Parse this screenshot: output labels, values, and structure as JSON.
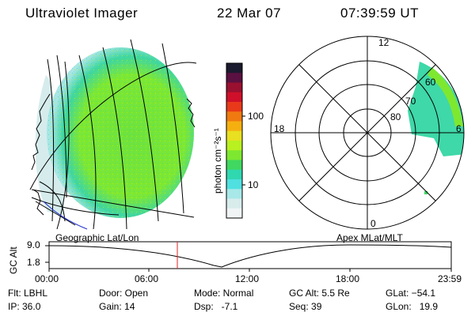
{
  "header": {
    "instrument": "Ultraviolet Imager",
    "date": "22 Mar 07",
    "time": "07:39:59 UT"
  },
  "colorbar": {
    "unit_label": "photon cm⁻²s⁻¹",
    "ticks": [
      "100",
      "10"
    ],
    "colors": [
      "#1a1a2e",
      "#5a1040",
      "#9a1030",
      "#d0102a",
      "#e83a1a",
      "#f07a10",
      "#f5b010",
      "#e8e020",
      "#b8f020",
      "#7ee830",
      "#40d860",
      "#30d8b0",
      "#50e0e0",
      "#a8e8e8",
      "#d8ecec",
      "#f0f4f4"
    ]
  },
  "polar_plot": {
    "mlt_labels": [
      "12",
      "18",
      "6",
      "0"
    ],
    "mlat_labels": [
      "60",
      "70",
      "80"
    ]
  },
  "map_labels": {
    "left": "Geographic Lat/Lon",
    "right": "Apex MLat/MLT"
  },
  "timeline": {
    "y_axis_title": "GC Alt",
    "y_ticks": [
      "9.0",
      "1.8"
    ],
    "x_ticks": [
      "00:00",
      "06:00",
      "12:00",
      "18:00",
      "23:59"
    ],
    "cursor_color": "#e02020"
  },
  "status": {
    "flt": "Flt: LBHL",
    "ip": "IP: 36.0",
    "door": "Door: Open",
    "gain": "Gain: 14",
    "mode": "Mode: Normal",
    "dsp": "Dsp:   -7.1",
    "gc_alt": "GC Alt: 5.5 Re",
    "seq": "Seq: 39",
    "glat": "GLat: −54.1",
    "glon": "GLon:   19.9"
  }
}
